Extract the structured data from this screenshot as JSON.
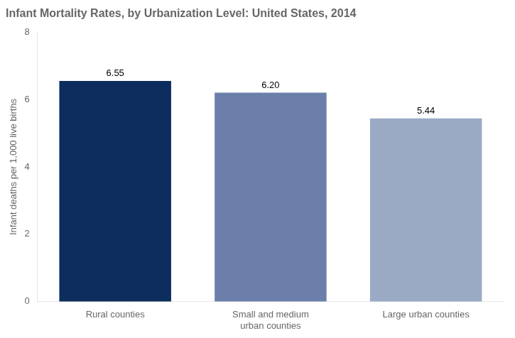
{
  "chart_data": {
    "type": "bar",
    "title": "Infant Mortality Rates, by Urbanization Level: United States, 2014",
    "categories": [
      "Rural counties",
      "Small and medium\nurban counties",
      "Large urban counties"
    ],
    "values": [
      6.55,
      6.2,
      5.44
    ],
    "value_labels": [
      "6.55",
      "6.20",
      "5.44"
    ],
    "data_labels": true,
    "colors": [
      "#0d2d5e",
      "#6b7faa",
      "#9aaac4"
    ],
    "ylabel": "Infant deaths per 1,000 live births",
    "ylim": [
      0,
      8
    ],
    "yticks": [
      0,
      2,
      4,
      6,
      8
    ],
    "grid": false
  }
}
